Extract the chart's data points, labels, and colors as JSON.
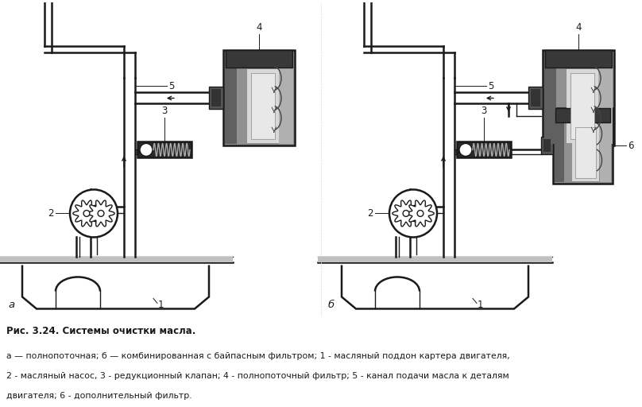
{
  "title": "Рис. 3.24. Системы очистки масла.",
  "cap1": "а — полнопоточная; б — комбинированная с байпасным фильтром; 1 - масляный поддон картера двигателя,",
  "cap2": "2 - масляный насос, 3 - редукционный клапан; 4 - полнопоточный фильтр; 5 - канал подачи масла к деталям",
  "cap3": "двигателя; 6 - дополнительный фильтр.",
  "label_a": "а",
  "label_b": "б",
  "bg": "#ffffff",
  "lc": "#1a1a1a",
  "dark": "#2a2a2a",
  "mid": "#666666",
  "light": "#aaaaaa",
  "silver": "#c8c8c8",
  "very_dark": "#111111"
}
